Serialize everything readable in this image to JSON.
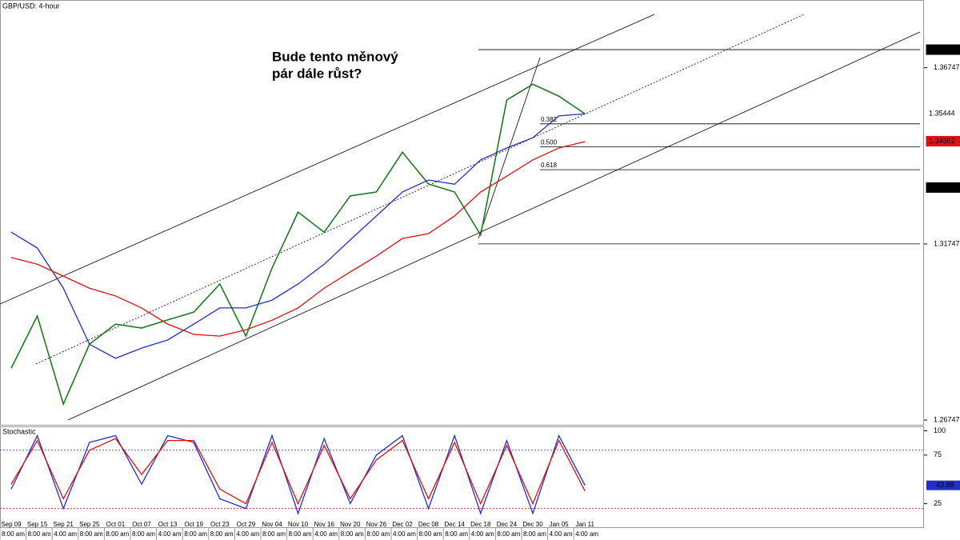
{
  "chart_data": [
    {
      "type": "line",
      "title": "GBP/USD: 4-hour",
      "annotation": [
        "Bude tento měnový",
        "pár dále růst?"
      ],
      "ylim": [
        1.2659,
        1.3867
      ],
      "yticks": [
        1.26747,
        1.31747,
        1.36747
      ],
      "series": [
        {
          "color": "#1f7a1f",
          "values": [
            1.2822,
            1.297,
            1.272,
            1.289,
            1.2947,
            1.2936,
            1.2959,
            1.2981,
            1.3061,
            1.2913,
            1.3106,
            1.3265,
            1.3208,
            1.3311,
            1.3322,
            1.3435,
            1.3345,
            1.3322,
            1.32,
            1.3583,
            1.3628,
            1.3594,
            1.3544
          ]
        },
        {
          "color": "#2030c8",
          "values": [
            1.3208,
            1.3163,
            1.3049,
            1.289,
            1.285,
            1.2879,
            1.2902,
            1.2947,
            1.2993,
            1.2993,
            1.3015,
            1.3061,
            1.3117,
            1.3186,
            1.3254,
            1.3322,
            1.3356,
            1.3344,
            1.3413,
            1.3447,
            1.3476,
            1.3538,
            1.3544
          ]
        },
        {
          "color": "#e01010",
          "values": [
            1.3136,
            1.3117,
            1.3083,
            1.3049,
            1.3027,
            1.2993,
            1.2947,
            1.2918,
            1.2913,
            1.2931,
            1.2958,
            1.2993,
            1.3049,
            1.3095,
            1.314,
            1.319,
            1.3204,
            1.3254,
            1.3322,
            1.3367,
            1.3413,
            1.3447,
            1.3465
          ]
        }
      ],
      "price_markers": [
        {
          "value": 1.37261,
          "color": "#000"
        },
        {
          "value": 1.35444,
          "color": "#fff"
        },
        {
          "value": 1.34662,
          "color": "#e01010"
        },
        {
          "value": 1.33347,
          "color": "#000"
        }
      ],
      "fib": {
        "low": 1.31747,
        "high": 1.37261,
        "levels": [
          {
            "value": 0.382,
            "label": "0.382"
          },
          {
            "value": 0.5,
            "label": "0.500"
          },
          {
            "value": 0.618,
            "label": "0.618"
          }
        ]
      }
    },
    {
      "type": "line",
      "title": "Stochastic",
      "categories": [
        "Sep 09",
        "Sep 15",
        "Sep 21",
        "Sep 25",
        "Oct 01",
        "Oct 07",
        "Oct 13",
        "Oct 19",
        "Oct 23",
        "Oct 29",
        "Nov 04",
        "Nov 10",
        "Nov 16",
        "Nov 20",
        "Nov 26",
        "Dec 02",
        "Dec 08",
        "Dec 14",
        "Dec 18",
        "Dec 24",
        "Dec 30",
        "Jan 05",
        "Jan 11"
      ],
      "times": [
        "8:00 am",
        "8:00 am",
        "4:00 am",
        "8:00 am",
        "8:00 am",
        "8:00 am",
        "4:00 am",
        "8:00 am",
        "8:00 am",
        "4:00 am",
        "8:00 am",
        "8:00 am",
        "4:00 am",
        "8:00 am",
        "8:00 am",
        "4:00 am",
        "8:00 am",
        "8:00 am",
        "4:00 am",
        "8:00 am",
        "8:00 am",
        "4:00 am",
        "4:00 am"
      ],
      "ylim": [
        0,
        104.5
      ],
      "yticks": [
        25,
        75,
        100
      ],
      "levels": [
        80,
        20
      ],
      "series": [
        {
          "color": "#2030c8",
          "values": [
            40,
            95,
            20,
            88,
            95,
            45,
            95,
            88,
            30,
            20,
            95,
            15,
            92,
            25,
            75,
            95,
            20,
            95,
            15,
            90,
            15,
            95,
            43.88
          ]
        },
        {
          "color": "#e01010",
          "values": [
            45,
            90,
            30,
            80,
            92,
            55,
            90,
            90,
            40,
            25,
            88,
            25,
            85,
            30,
            70,
            90,
            30,
            88,
            25,
            85,
            25,
            90,
            38
          ]
        }
      ]
    }
  ]
}
